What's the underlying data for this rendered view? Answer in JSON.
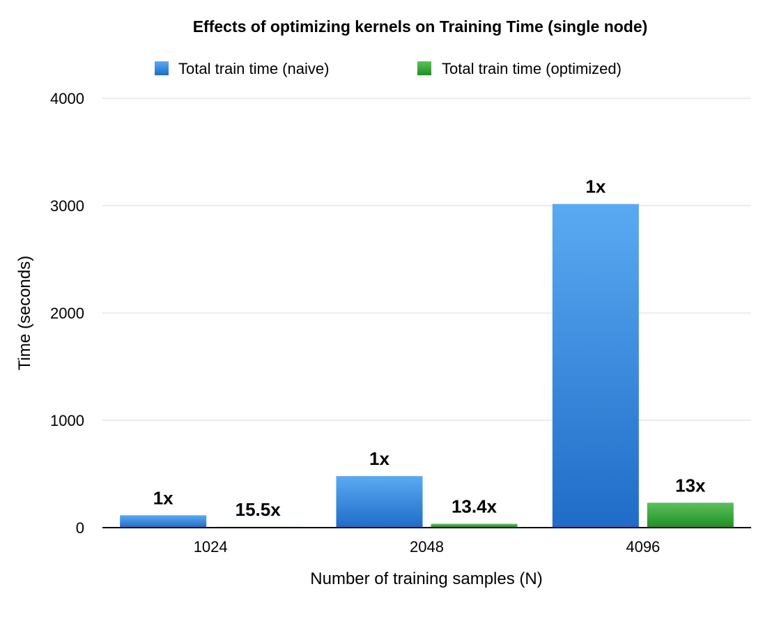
{
  "chart_data": {
    "type": "bar",
    "title": "Effects of optimizing kernels on Training Time (single node)",
    "xlabel": "Number of training samples (N)",
    "ylabel": "Time (seconds)",
    "categories": [
      "1024",
      "2048",
      "4096"
    ],
    "series": [
      {
        "name": "Total train time (naive)",
        "values": [
          115,
          480,
          3015
        ],
        "labels": [
          "1x",
          "1x",
          "1x"
        ],
        "color_top": "#5aaaf2",
        "color_bottom": "#1f6cc8"
      },
      {
        "name": "Total train time (optimized)",
        "values": [
          7.4,
          35.8,
          232
        ],
        "labels": [
          "15.5x",
          "13.4x",
          "13x"
        ],
        "color_top": "#5cc05a",
        "color_bottom": "#1f8f25"
      }
    ],
    "ylim": [
      0,
      4000
    ],
    "yticks": [
      0,
      1000,
      2000,
      3000,
      4000
    ],
    "grid": true,
    "legend_position": "top"
  }
}
